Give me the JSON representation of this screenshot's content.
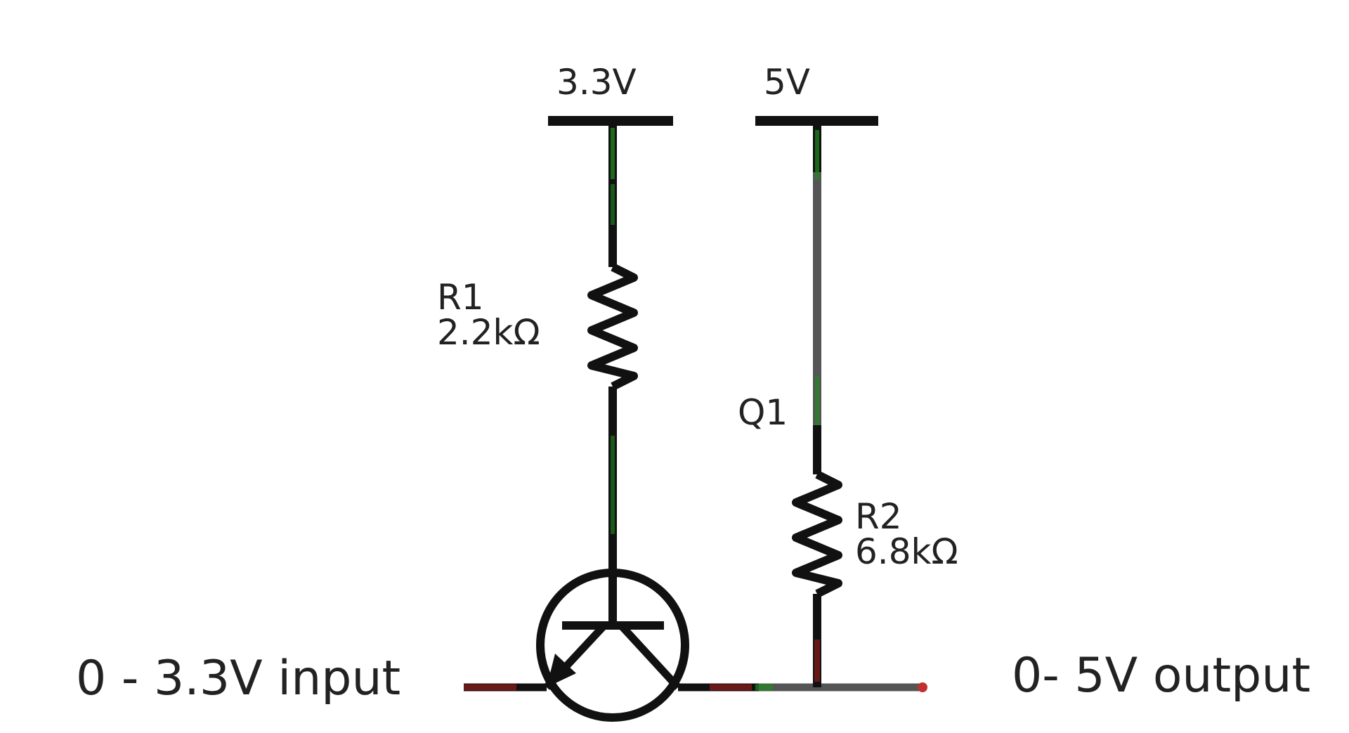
{
  "rails": {
    "v33": "3.3V",
    "v5": "5V"
  },
  "components": {
    "r1": {
      "ref": "R1",
      "value": "2.2kΩ"
    },
    "q1": {
      "ref": "Q1"
    },
    "r2": {
      "ref": "R2",
      "value": "6.8kΩ"
    }
  },
  "io": {
    "input": "0 - 3.3V input",
    "output": "0- 5V output"
  },
  "colors": {
    "wire": "#111111",
    "wire_grey": "#555555",
    "wire_green": "#1f8a1f",
    "wire_red": "#7a1a1a"
  }
}
